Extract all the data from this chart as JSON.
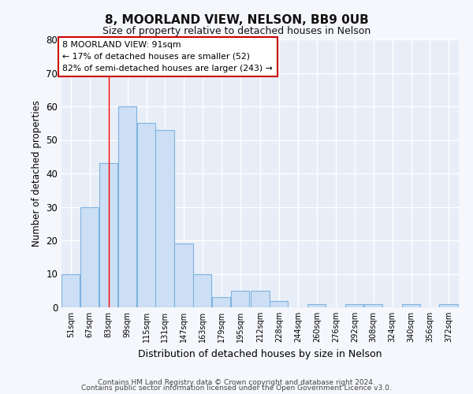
{
  "title": "8, MOORLAND VIEW, NELSON, BB9 0UB",
  "subtitle": "Size of property relative to detached houses in Nelson",
  "xlabel": "Distribution of detached houses by size in Nelson",
  "ylabel": "Number of detached properties",
  "bar_color": "#ccdff5",
  "bar_edge_color": "#7fb3e0",
  "background_color": "#e8eef8",
  "fig_background": "#f5f7fc",
  "bins": [
    51,
    67,
    83,
    99,
    115,
    131,
    147,
    163,
    179,
    195,
    212,
    228,
    244,
    260,
    276,
    292,
    308,
    324,
    340,
    356,
    372,
    388
  ],
  "counts": [
    10,
    30,
    43,
    60,
    55,
    53,
    19,
    10,
    3,
    5,
    5,
    2,
    0,
    1,
    0,
    1,
    1,
    0,
    1,
    0,
    1
  ],
  "tick_labels": [
    "51sqm",
    "67sqm",
    "83sqm",
    "99sqm",
    "115sqm",
    "131sqm",
    "147sqm",
    "163sqm",
    "179sqm",
    "195sqm",
    "212sqm",
    "228sqm",
    "244sqm",
    "260sqm",
    "276sqm",
    "292sqm",
    "308sqm",
    "324sqm",
    "340sqm",
    "356sqm",
    "372sqm"
  ],
  "ylim": [
    0,
    80
  ],
  "yticks": [
    0,
    10,
    20,
    30,
    40,
    50,
    60,
    70,
    80
  ],
  "red_line_x": 91,
  "annotation_line1": "8 MOORLAND VIEW: 91sqm",
  "annotation_line2": "← 17% of detached houses are smaller (52)",
  "annotation_line3": "82% of semi-detached houses are larger (243) →",
  "annotation_box_color": "#ffffff",
  "annotation_box_edge": "#cc0000",
  "footer1": "Contains HM Land Registry data © Crown copyright and database right 2024.",
  "footer2": "Contains public sector information licensed under the Open Government Licence v3.0."
}
